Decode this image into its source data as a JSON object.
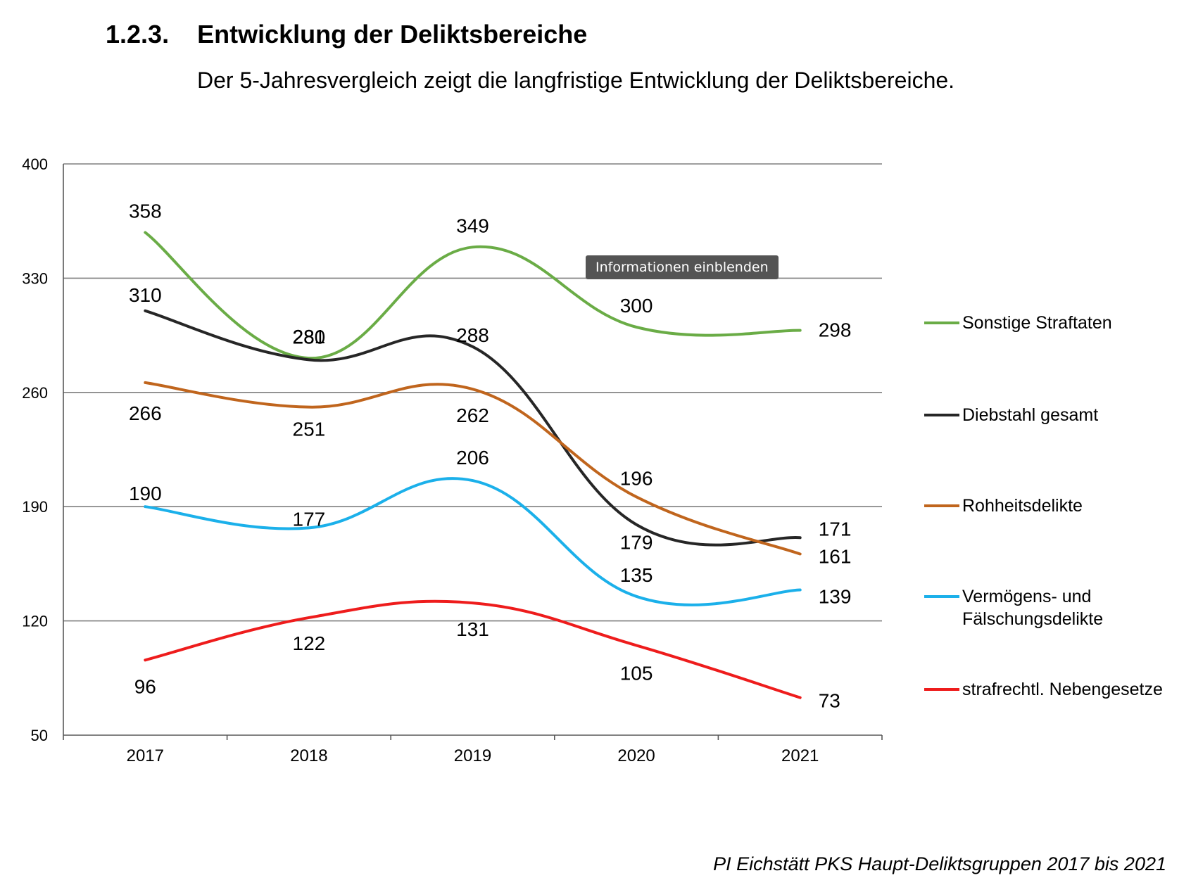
{
  "heading": {
    "number": "1.2.3.",
    "title": "Entwicklung der Deliktsbereiche"
  },
  "subtitle": "Der 5-Jahresvergleich zeigt die langfristige Entwicklung der Deliktsbereiche.",
  "tooltip": "Informationen einblenden",
  "caption": "PI Eichstätt PKS Haupt-Deliktsgruppen 2017 bis 2021",
  "chart_data": {
    "type": "line",
    "smooth": true,
    "x": [
      "2017",
      "2018",
      "2019",
      "2020",
      "2021"
    ],
    "ylim": [
      50,
      400
    ],
    "yticks": [
      50,
      120,
      190,
      260,
      330,
      400
    ],
    "grid": true,
    "legend_position": "right",
    "series": [
      {
        "name": "Sonstige Straftaten",
        "color": "#6aac46",
        "values": [
          358,
          281,
          349,
          300,
          298
        ]
      },
      {
        "name": "Diebstahl gesamt",
        "color": "#262626",
        "values": [
          310,
          280,
          288,
          179,
          171
        ]
      },
      {
        "name": "Rohheitsdelikte",
        "color": "#c0651d",
        "values": [
          266,
          251,
          262,
          196,
          161
        ]
      },
      {
        "name": "Vermögens- und Fälschungsdelikte",
        "color": "#1bb0ea",
        "values": [
          190,
          177,
          206,
          135,
          139
        ]
      },
      {
        "name": "strafrechtl. Nebengesetze",
        "color": "#ee1c1c",
        "values": [
          96,
          122,
          131,
          105,
          73
        ]
      }
    ]
  }
}
